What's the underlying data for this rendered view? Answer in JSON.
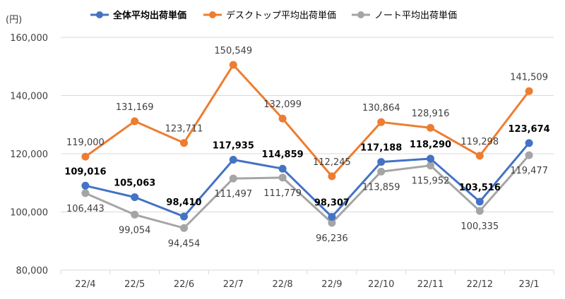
{
  "chart_data": {
    "type": "line",
    "unit_label": "(円)",
    "categories": [
      "22/4",
      "22/5",
      "22/6",
      "22/7",
      "22/8",
      "22/9",
      "22/10",
      "22/11",
      "22/12",
      "23/1"
    ],
    "ylim": [
      80000,
      160000
    ],
    "yticks": [
      80000,
      100000,
      120000,
      140000,
      160000
    ],
    "ytick_labels": [
      "80,000",
      "100,000",
      "120,000",
      "140,000",
      "160,000"
    ],
    "grid": true,
    "legend_position": "top",
    "series": [
      {
        "name": "デスクトップ平均出荷単価",
        "color": "#ED7D31",
        "bold_labels": false,
        "values": [
          119000,
          131169,
          123711,
          150549,
          132099,
          112245,
          130864,
          128916,
          119298,
          141509
        ],
        "labels": [
          "119,000",
          "131,169",
          "123,711",
          "150,549",
          "132,099",
          "112,245",
          "130,864",
          "128,916",
          "119,298",
          "141,509"
        ]
      },
      {
        "name": "ノート平均出荷単価",
        "color": "#A5A5A5",
        "bold_labels": false,
        "values": [
          106443,
          99054,
          94454,
          111497,
          111779,
          96236,
          113859,
          115952,
          100335,
          119477
        ],
        "labels": [
          "106,443",
          "99,054",
          "94,454",
          "111,497",
          "111,779",
          "96,236",
          "113,859",
          "115,952",
          "100,335",
          "119,477"
        ]
      },
      {
        "name": "全体平均出荷単価",
        "color": "#4472C4",
        "bold_labels": true,
        "values": [
          109016,
          105063,
          98410,
          117935,
          114859,
          98307,
          117188,
          118290,
          103516,
          123674
        ],
        "labels": [
          "109,016",
          "105,063",
          "98,410",
          "117,935",
          "114,859",
          "98,307",
          "117,188",
          "118,290",
          "103,516",
          "123,674"
        ]
      }
    ],
    "legend_order": [
      2,
      0,
      1
    ]
  }
}
